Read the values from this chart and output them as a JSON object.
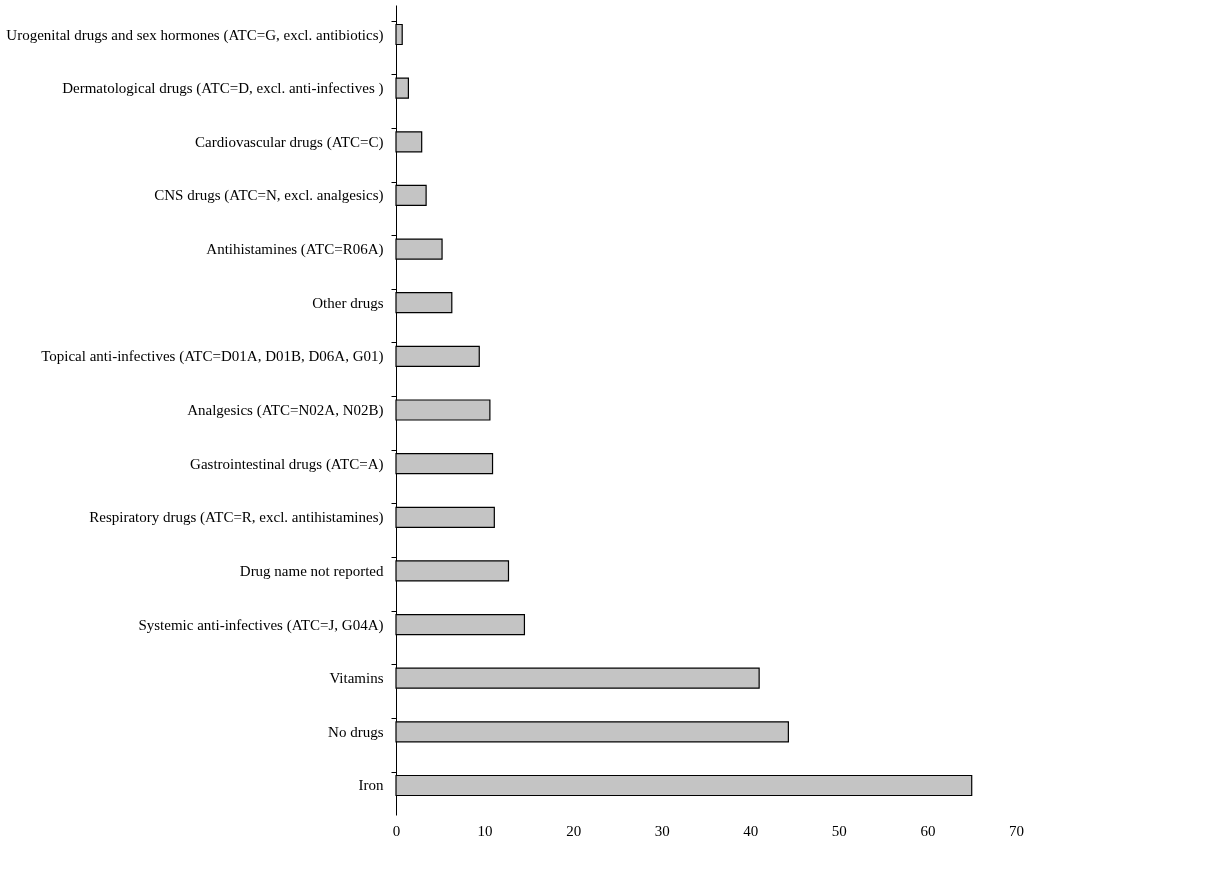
{
  "chart_data": {
    "type": "bar",
    "orientation": "horizontal",
    "categories": [
      "Urogenital drugs and sex hormones (ATC=G, excl. antibiotics)",
      "Dermatological drugs (ATC=D, excl. anti-infectives )",
      "Cardiovascular drugs (ATC=C)",
      "CNS drugs (ATC=N, excl. analgesics)",
      "Antihistamines (ATC=R06A)",
      "Other drugs",
      "Topical anti-infectives (ATC=D01A, D01B, D06A, G01)",
      "Analgesics (ATC=N02A, N02B)",
      "Gastrointestinal drugs (ATC=A)",
      "Respiratory drugs (ATC=R, excl. antihistamines)",
      "Drug name not reported",
      "Systemic anti-infectives  (ATC=J, G04A)",
      "Vitamins",
      "No drugs",
      "Iron"
    ],
    "values": [
      0.7,
      1.4,
      2.9,
      3.4,
      5.2,
      6.3,
      9.4,
      10.6,
      10.9,
      11.1,
      12.7,
      14.5,
      41,
      44.3,
      65
    ],
    "color": "#c4c4c4",
    "xlim": [
      0,
      70
    ],
    "xticks": [
      0,
      10,
      20,
      30,
      40,
      50,
      60,
      70
    ],
    "grid": false
  }
}
